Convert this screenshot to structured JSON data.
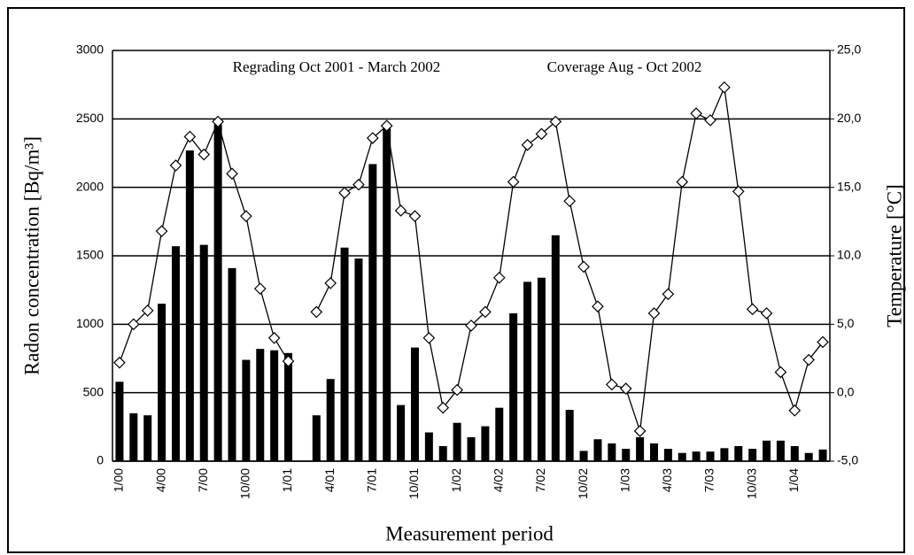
{
  "chart_data": {
    "type": "bar",
    "annotations": [
      "Regrading Oct 2001 - March 2002",
      "Coverage Aug - Oct 2002"
    ],
    "x_label": "Measurement period",
    "y_label": "Radon concentration [Bq/m³]",
    "y2_label": "Temperature [°C]",
    "categories": [
      "1/00",
      null,
      null,
      "4/00",
      null,
      null,
      "7/00",
      null,
      null,
      "10/00",
      null,
      null,
      "1/01",
      null,
      null,
      "4/01",
      null,
      null,
      "7/01",
      null,
      null,
      "10/01",
      null,
      null,
      "1/02",
      null,
      null,
      "4/02",
      null,
      null,
      "7/02",
      null,
      null,
      "10/02",
      null,
      null,
      "1/03",
      null,
      null,
      "4/03",
      null,
      null,
      "7/03",
      null,
      null,
      "10/03",
      null,
      null,
      "1/04",
      null,
      null
    ],
    "series": [
      {
        "type": "bar",
        "color": "#000000",
        "values": [
          580,
          350,
          335,
          1150,
          1570,
          2270,
          1580,
          2460,
          1410,
          740,
          820,
          810,
          790,
          null,
          335,
          600,
          1560,
          1480,
          2170,
          2430,
          410,
          830,
          210,
          110,
          280,
          175,
          255,
          390,
          1080,
          1310,
          1340,
          1650,
          375,
          75,
          160,
          130,
          90,
          175,
          130,
          90,
          60,
          70,
          70,
          95,
          110,
          90,
          150,
          150,
          110,
          60,
          85
        ]
      },
      {
        "type": "line",
        "axis": "y2",
        "color": "#000000",
        "values": [
          2.2,
          5.0,
          6.0,
          11.8,
          16.6,
          18.7,
          17.4,
          19.8,
          16.0,
          12.9,
          7.6,
          4.0,
          2.3,
          null,
          5.9,
          8.0,
          14.6,
          15.2,
          18.6,
          19.5,
          13.3,
          12.9,
          4.0,
          -1.1,
          0.2,
          4.9,
          5.9,
          8.4,
          15.4,
          18.1,
          18.9,
          19.8,
          14.0,
          9.2,
          6.3,
          0.6,
          0.3,
          -2.8,
          5.8,
          7.2,
          15.4,
          20.4,
          19.9,
          22.3,
          14.7,
          6.1,
          5.8,
          1.5,
          -1.3,
          2.4,
          3.7
        ]
      }
    ],
    "ylim": [
      0,
      3000
    ],
    "yticks": [
      0,
      500,
      1000,
      1500,
      2000,
      2500,
      3000
    ],
    "y2lim": [
      -5,
      25
    ],
    "y2ticks": [
      {
        "value": -5,
        "label": "-5,0"
      },
      {
        "value": 0,
        "label": "0,0"
      },
      {
        "value": 5,
        "label": "5,0"
      },
      {
        "value": 10,
        "label": "10,0"
      },
      {
        "value": 15,
        "label": "15,0"
      },
      {
        "value": 20,
        "label": "20,0"
      },
      {
        "value": 25,
        "label": "25,0"
      }
    ],
    "grid": true
  }
}
